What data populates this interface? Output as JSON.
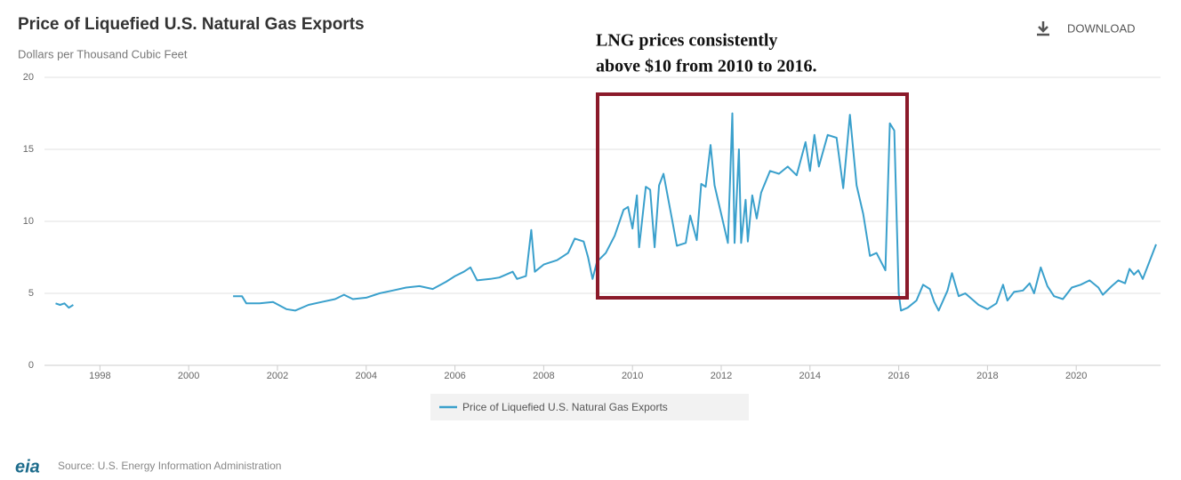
{
  "chart_data": {
    "type": "line",
    "title": "Price of Liquefied U.S. Natural Gas Exports",
    "subtitle": "Dollars per Thousand Cubic Feet",
    "annotation": [
      "LNG prices consistently",
      "above $10 from 2010 to 2016."
    ],
    "download": "DOWNLOAD",
    "source": "Source: U.S. Energy Information Administration",
    "logo": "eia",
    "x": [
      1997.0,
      1997.1,
      1997.2,
      1997.3,
      1997.4,
      1999.0,
      2001.0,
      2001.2,
      2001.3,
      2001.6,
      2001.9,
      2002.2,
      2002.4,
      2002.7,
      2003.0,
      2003.3,
      2003.5,
      2003.7,
      2004.0,
      2004.3,
      2004.6,
      2004.9,
      2005.2,
      2005.5,
      2005.8,
      2006.0,
      2006.2,
      2006.35,
      2006.5,
      2006.8,
      2007.0,
      2007.3,
      2007.4,
      2007.6,
      2007.72,
      2007.8,
      2008.0,
      2008.3,
      2008.55,
      2008.7,
      2008.9,
      2009.0,
      2009.1,
      2009.2,
      2009.4,
      2009.6,
      2009.8,
      2009.9,
      2010.0,
      2010.1,
      2010.15,
      2010.3,
      2010.4,
      2010.5,
      2010.6,
      2010.7,
      2010.9,
      2011.0,
      2011.2,
      2011.3,
      2011.45,
      2011.55,
      2011.65,
      2011.76,
      2011.85,
      2012.0,
      2012.15,
      2012.25,
      2012.3,
      2012.4,
      2012.45,
      2012.55,
      2012.6,
      2012.7,
      2012.8,
      2012.9,
      2013.1,
      2013.3,
      2013.5,
      2013.7,
      2013.9,
      2014.0,
      2014.1,
      2014.2,
      2014.4,
      2014.6,
      2014.75,
      2014.9,
      2015.05,
      2015.2,
      2015.35,
      2015.5,
      2015.7,
      2015.8,
      2015.9,
      2016.0,
      2016.05,
      2016.2,
      2016.4,
      2016.55,
      2016.7,
      2016.8,
      2016.9,
      2017.1,
      2017.2,
      2017.35,
      2017.5,
      2017.8,
      2018.0,
      2018.2,
      2018.35,
      2018.45,
      2018.6,
      2018.8,
      2018.95,
      2019.05,
      2019.2,
      2019.35,
      2019.5,
      2019.7,
      2019.9,
      2020.1,
      2020.3,
      2020.5,
      2020.6,
      2020.8,
      2020.95,
      2021.1,
      2021.2,
      2021.3,
      2021.4,
      2021.5,
      2021.65,
      2021.8
    ],
    "series": [
      {
        "name": "Price of Liquefied U.S. Natural Gas Exports",
        "color": "#3aa0cc",
        "values": [
          4.3,
          4.2,
          4.3,
          4.0,
          4.2,
          null,
          4.8,
          4.8,
          4.3,
          4.3,
          4.4,
          3.9,
          3.8,
          4.2,
          4.4,
          4.6,
          4.9,
          4.6,
          4.7,
          5.0,
          5.2,
          5.4,
          5.5,
          5.3,
          5.8,
          6.2,
          6.5,
          6.8,
          5.9,
          6.0,
          6.1,
          6.5,
          6.0,
          6.2,
          9.4,
          6.5,
          7.0,
          7.3,
          7.8,
          8.8,
          8.6,
          7.5,
          6.0,
          7.2,
          7.8,
          9.0,
          10.8,
          11.0,
          9.5,
          11.8,
          8.2,
          12.4,
          12.2,
          8.2,
          12.5,
          13.3,
          10.0,
          8.3,
          8.5,
          10.4,
          8.7,
          12.6,
          12.4,
          15.3,
          12.5,
          10.5,
          8.5,
          17.5,
          8.5,
          15.0,
          8.5,
          11.5,
          8.6,
          11.8,
          10.2,
          12.0,
          13.5,
          13.3,
          13.8,
          13.2,
          15.5,
          13.5,
          16.0,
          13.8,
          16.0,
          15.8,
          12.3,
          17.4,
          12.5,
          10.5,
          7.6,
          7.8,
          6.6,
          16.8,
          16.3,
          5.0,
          3.8,
          4.0,
          4.5,
          5.6,
          5.3,
          4.4,
          3.8,
          5.2,
          6.4,
          4.8,
          5.0,
          4.2,
          3.9,
          4.3,
          5.6,
          4.5,
          5.1,
          5.2,
          5.7,
          5.0,
          6.8,
          5.5,
          4.8,
          4.6,
          5.4,
          5.6,
          5.9,
          5.4,
          4.9,
          5.5,
          5.9,
          5.7,
          6.7,
          6.3,
          6.6,
          6.0,
          7.2,
          8.4
        ]
      }
    ],
    "xlim": [
      1996.75,
      2021.9
    ],
    "xticks": [
      1998,
      2000,
      2002,
      2004,
      2006,
      2008,
      2010,
      2012,
      2014,
      2016,
      2018,
      2020
    ],
    "ylim": [
      0,
      20
    ],
    "yticks": [
      0,
      5,
      10,
      15,
      20
    ],
    "grid": true
  }
}
